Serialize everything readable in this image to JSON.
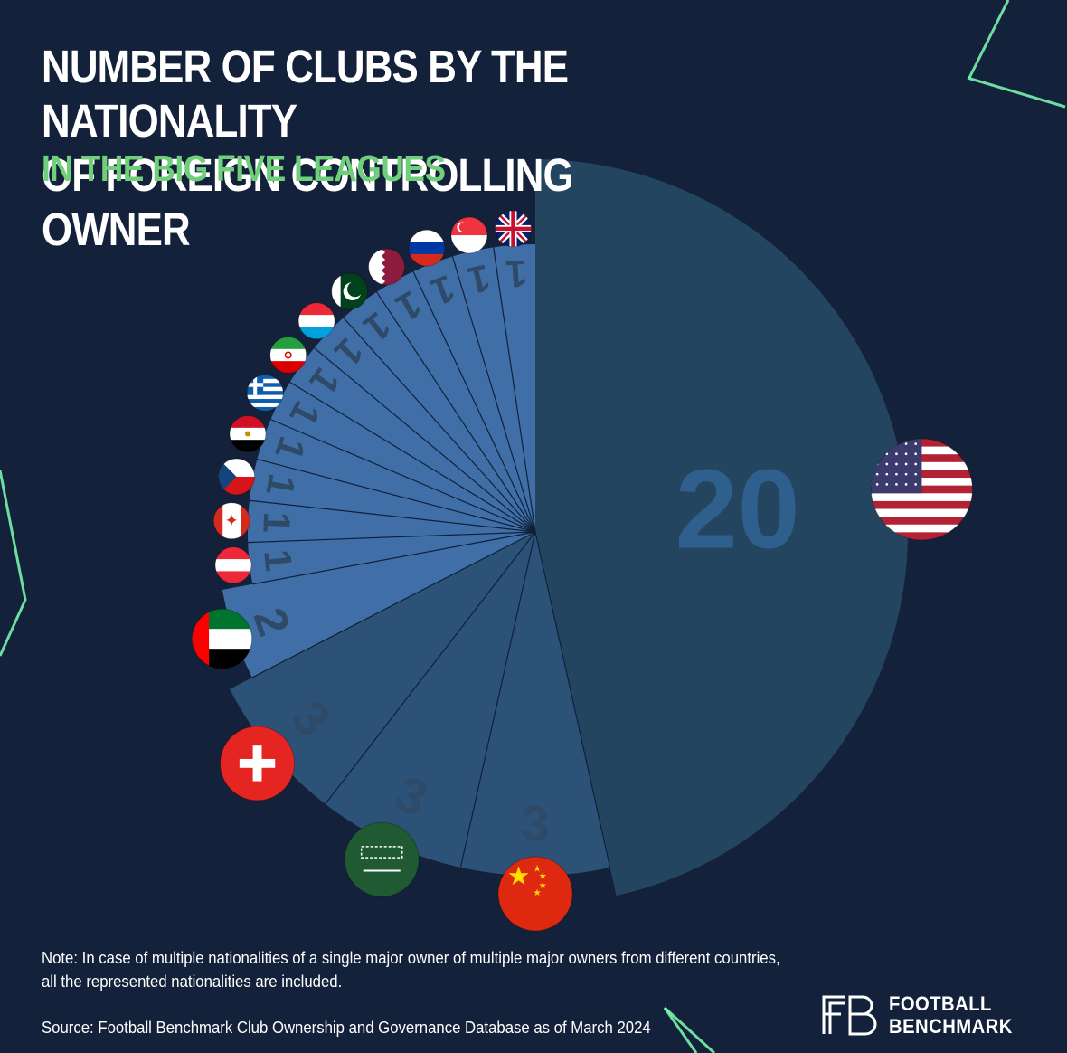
{
  "title_lines": [
    "NUMBER OF CLUBS BY THE NATIONALITY",
    "OF FOREIGN CONTROLLING OWNER"
  ],
  "subtitle": "IN THE BIG FIVE LEAGUES",
  "note_lines": [
    "Note: In case of multiple nationalities of a single major owner of multiple major owners from different countries,",
    "all the represented nationalities are included."
  ],
  "source": "Source: Football Benchmark Club Ownership and Governance Database as of March 2024",
  "brand": {
    "line1": "FOOTBALL",
    "line2": "BENCHMARK"
  },
  "colors": {
    "background": "#14213a",
    "us_slice": "#244560",
    "slice_medium": "#2d5277",
    "slice_light": "#3f6fa6",
    "label_text": "#2e4a68",
    "subtitle": "#6fcf7a",
    "neon": "#7dffb1"
  },
  "chart_data": {
    "type": "pie",
    "subtype": "half-pie / radial bar (radius grows with value)",
    "value_labels_shown": true,
    "slices": [
      {
        "country": "United States",
        "flag": "flag-us",
        "value": 20
      },
      {
        "country": "China",
        "flag": "flag-china",
        "value": 3
      },
      {
        "country": "Saudi Arabia",
        "flag": "flag-saudi-arabia",
        "value": 3
      },
      {
        "country": "Switzerland",
        "flag": "flag-switzerland",
        "value": 3
      },
      {
        "country": "United Arab Emirates",
        "flag": "flag-uae",
        "value": 2
      },
      {
        "country": "Austria",
        "flag": "flag-austria",
        "value": 1
      },
      {
        "country": "Canada",
        "flag": "flag-canada",
        "value": 1
      },
      {
        "country": "Czech Republic",
        "flag": "flag-czech-republic",
        "value": 1
      },
      {
        "country": "Egypt",
        "flag": "flag-egypt",
        "value": 1
      },
      {
        "country": "Greece",
        "flag": "flag-greece",
        "value": 1
      },
      {
        "country": "Iran",
        "flag": "flag-iran",
        "value": 1
      },
      {
        "country": "Luxembourg",
        "flag": "flag-luxembourg",
        "value": 1
      },
      {
        "country": "Pakistan",
        "flag": "flag-pakistan",
        "value": 1
      },
      {
        "country": "Qatar",
        "flag": "flag-qatar",
        "value": 1
      },
      {
        "country": "Russia",
        "flag": "flag-russia",
        "value": 1
      },
      {
        "country": "Singapore",
        "flag": "flag-singapore",
        "value": 1
      },
      {
        "country": "United Kingdom",
        "flag": "flag-uk",
        "value": 1
      }
    ]
  }
}
